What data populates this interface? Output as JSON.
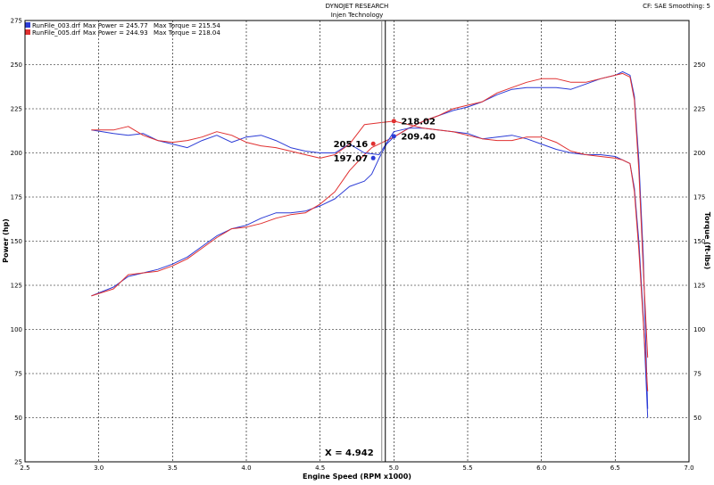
{
  "header": {
    "company": "DYNOJET RESEARCH",
    "subtitle": "Injen Technology",
    "right_info": "CF: SAE  Smoothing: 5"
  },
  "legend": [
    {
      "file": "RunFile_003.drf",
      "power_text": "Max Power = 245.77",
      "torque_text": "Max Torque = 215.54",
      "color": "#2b3bd6"
    },
    {
      "file": "RunFile_005.drf",
      "power_text": "Max Power = 244.93",
      "torque_text": "Max Torque = 218.04",
      "color": "#e03030"
    }
  ],
  "cursor": {
    "readout": "X = 4.942"
  },
  "chart_data": {
    "type": "line",
    "title": "DYNOJET RESEARCH",
    "subtitle": "Injen Technology",
    "xlabel": "Engine Speed (RPM x1000)",
    "ylabel": "Power (hp)",
    "y2label": "Torque (ft-lbs)",
    "xlim": [
      2.5,
      7.0
    ],
    "ylim": [
      25,
      275
    ],
    "x_ticks": [
      "2.5",
      "3.0",
      "3.5",
      "4.0",
      "4.5",
      "5.0",
      "5.5",
      "6.0",
      "6.5",
      "7.0"
    ],
    "y_ticks": [
      "25",
      "50",
      "75",
      "100",
      "125",
      "150",
      "175",
      "200",
      "225",
      "250",
      "275"
    ],
    "y2_ticks": [
      "50",
      "75",
      "100",
      "125",
      "150",
      "175",
      "200",
      "225",
      "250"
    ],
    "grid": true,
    "cursor_x": 4.942,
    "series": [
      {
        "name": "RunFile_003.drf Power",
        "color": "#2b3bd6",
        "x": [
          2.95,
          3.1,
          3.2,
          3.3,
          3.4,
          3.5,
          3.6,
          3.7,
          3.8,
          3.9,
          4.0,
          4.1,
          4.2,
          4.3,
          4.4,
          4.5,
          4.6,
          4.7,
          4.8,
          4.85,
          4.9,
          4.95,
          5.0,
          5.1,
          5.2,
          5.3,
          5.4,
          5.5,
          5.6,
          5.7,
          5.8,
          5.9,
          6.0,
          6.1,
          6.2,
          6.3,
          6.4,
          6.5,
          6.55,
          6.6,
          6.63,
          6.66,
          6.69,
          6.72
        ],
        "values": [
          119,
          124,
          130,
          132,
          134,
          137,
          141,
          147,
          153,
          157,
          159,
          163,
          166,
          166,
          167,
          170,
          174,
          181,
          184,
          188,
          197,
          205,
          209,
          214,
          218,
          221,
          224,
          226,
          229,
          233,
          236,
          237,
          237,
          237,
          236,
          239,
          242,
          244,
          246,
          244,
          232,
          196,
          142,
          55
        ]
      },
      {
        "name": "RunFile_005.drf Power",
        "color": "#e03030",
        "x": [
          2.95,
          3.1,
          3.2,
          3.3,
          3.4,
          3.5,
          3.6,
          3.7,
          3.8,
          3.9,
          4.0,
          4.1,
          4.2,
          4.3,
          4.4,
          4.5,
          4.6,
          4.7,
          4.8,
          4.85,
          4.9,
          4.95,
          5.0,
          5.1,
          5.2,
          5.3,
          5.4,
          5.5,
          5.6,
          5.7,
          5.8,
          5.9,
          6.0,
          6.1,
          6.2,
          6.3,
          6.4,
          6.5,
          6.55,
          6.6,
          6.63,
          6.66,
          6.69,
          6.72
        ],
        "values": [
          119,
          123,
          131,
          132,
          133,
          136,
          140,
          146,
          152,
          157,
          158,
          160,
          163,
          165,
          166,
          171,
          178,
          190,
          199,
          203,
          205,
          207,
          209,
          214,
          218,
          221,
          225,
          227,
          229,
          234,
          237,
          240,
          242,
          242,
          240,
          240,
          242,
          244,
          245,
          243,
          230,
          190,
          135,
          84
        ]
      },
      {
        "name": "RunFile_003.drf Torque",
        "color": "#2b3bd6",
        "x": [
          2.95,
          3.1,
          3.2,
          3.3,
          3.4,
          3.5,
          3.6,
          3.7,
          3.8,
          3.9,
          4.0,
          4.1,
          4.2,
          4.3,
          4.4,
          4.5,
          4.6,
          4.7,
          4.8,
          4.9,
          5.0,
          5.1,
          5.2,
          5.3,
          5.4,
          5.5,
          5.6,
          5.7,
          5.8,
          5.9,
          6.0,
          6.1,
          6.2,
          6.3,
          6.4,
          6.5,
          6.55,
          6.6,
          6.63,
          6.66,
          6.69,
          6.72
        ],
        "values": [
          213,
          211,
          210,
          211,
          207,
          205,
          203,
          207,
          210,
          206,
          209,
          210,
          207,
          203,
          201,
          200,
          200,
          205,
          200,
          199,
          212,
          214,
          214,
          213,
          212,
          211,
          208,
          209,
          210,
          208,
          205,
          202,
          200,
          199,
          199,
          198,
          196,
          194,
          180,
          150,
          108,
          50
        ]
      },
      {
        "name": "RunFile_005.drf Torque",
        "color": "#e03030",
        "x": [
          2.95,
          3.1,
          3.2,
          3.3,
          3.4,
          3.5,
          3.6,
          3.7,
          3.8,
          3.9,
          4.0,
          4.1,
          4.2,
          4.3,
          4.4,
          4.5,
          4.6,
          4.7,
          4.8,
          4.9,
          5.0,
          5.1,
          5.2,
          5.3,
          5.4,
          5.5,
          5.6,
          5.7,
          5.8,
          5.9,
          6.0,
          6.1,
          6.2,
          6.3,
          6.4,
          6.5,
          6.55,
          6.6,
          6.63,
          6.66,
          6.69,
          6.72
        ],
        "values": [
          213,
          213,
          215,
          210,
          207,
          206,
          207,
          209,
          212,
          210,
          206,
          204,
          203,
          201,
          199,
          197,
          199,
          205,
          216,
          217,
          218,
          216,
          214,
          213,
          212,
          210,
          208,
          207,
          207,
          209,
          209,
          206,
          201,
          199,
          198,
          197,
          196,
          194,
          178,
          145,
          105,
          65
        ]
      }
    ],
    "annotations": [
      {
        "text": "218.02",
        "x": 5.0,
        "y": 218.02,
        "color": "#e03030",
        "anchor": "right"
      },
      {
        "text": "209.40",
        "x": 5.0,
        "y": 209.4,
        "color": "#2b3bd6",
        "anchor": "right"
      },
      {
        "text": "205.16",
        "x": 4.86,
        "y": 205.16,
        "color": "#e03030",
        "anchor": "left"
      },
      {
        "text": "197.07",
        "x": 4.86,
        "y": 197.07,
        "color": "#2b3bd6",
        "anchor": "left"
      }
    ]
  }
}
